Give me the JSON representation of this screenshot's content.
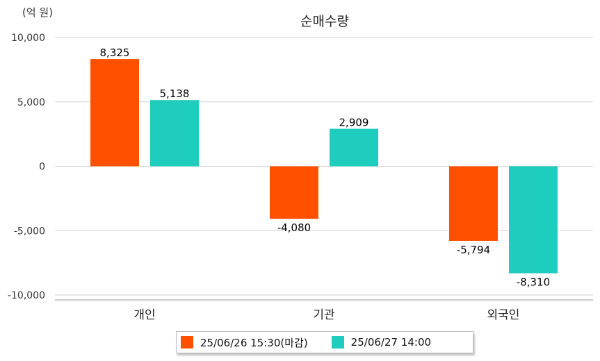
{
  "chart_data": {
    "type": "bar",
    "title": "순매수량",
    "unit_label": "(억 원)",
    "categories": [
      "개인",
      "기관",
      "외국인"
    ],
    "series": [
      {
        "name": "25/06/26 15:30(마감)",
        "color": "#ff5000",
        "values": [
          8325,
          -4080,
          -5794
        ],
        "labels": [
          "8,325",
          "-4,080",
          "-5,794"
        ]
      },
      {
        "name": "25/06/27 14:00",
        "color": "#1ecdbe",
        "values": [
          5138,
          2909,
          -8310
        ],
        "labels": [
          "5,138",
          "2,909",
          "-8,310"
        ]
      }
    ],
    "ylim": [
      -10000,
      10000
    ],
    "yticks": [
      10000,
      5000,
      0,
      -5000,
      -10000
    ],
    "ytick_labels": [
      "10,000",
      "5,000",
      "0",
      "-5,000",
      "-10,000"
    ],
    "grid": true,
    "legend_position": "bottom"
  }
}
